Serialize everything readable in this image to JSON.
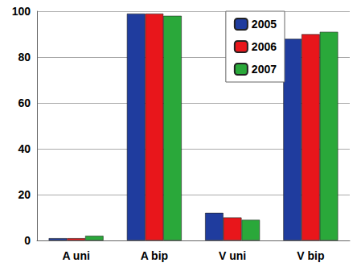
{
  "chart_data": {
    "type": "bar",
    "categories": [
      "A uni",
      "A bip",
      "V uni",
      "V bip"
    ],
    "series": [
      {
        "name": "2005",
        "color": "#1f3c9e",
        "values": [
          1,
          99,
          12,
          88
        ]
      },
      {
        "name": "2006",
        "color": "#e8161b",
        "values": [
          1,
          99,
          10,
          90
        ]
      },
      {
        "name": "2007",
        "color": "#2aa83a",
        "values": [
          2,
          98,
          9,
          91
        ]
      }
    ],
    "ylim": [
      0,
      100
    ],
    "yticks": [
      0,
      20,
      40,
      60,
      80,
      100
    ],
    "grid": true,
    "legend": "upper right"
  }
}
